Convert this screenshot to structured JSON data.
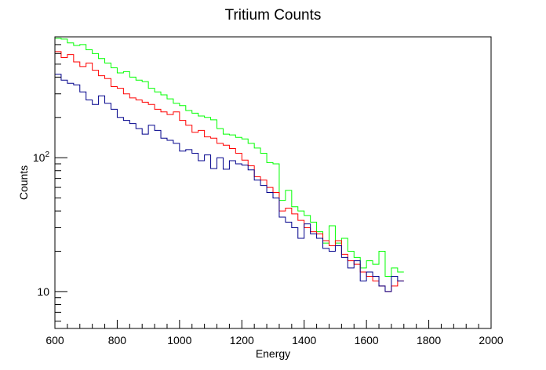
{
  "chart_data": {
    "type": "step-histogram",
    "title": "Tritium Counts",
    "xlabel": "Energy",
    "ylabel": "Counts",
    "xlim": [
      600,
      2000
    ],
    "ylim": [
      5.3,
      800
    ],
    "yscale": "log",
    "grid": false,
    "x_ticks": [
      600,
      800,
      1000,
      1200,
      1400,
      1600,
      1800,
      2000
    ],
    "x_tick_labels": [
      "600",
      "800",
      "1000",
      "1200",
      "1400",
      "1600",
      "1800",
      "2000"
    ],
    "y_tick_labels": [
      {
        "value": 10,
        "base": "10",
        "exp": ""
      },
      {
        "value": 100,
        "base": "10",
        "exp": "2"
      }
    ],
    "bin_width": 20,
    "bin_edges_start": 600,
    "series": [
      {
        "color": "#00ff00",
        "values": [
          780,
          770,
          720,
          690,
          700,
          640,
          600,
          550,
          510,
          470,
          430,
          440,
          400,
          380,
          370,
          330,
          310,
          295,
          275,
          255,
          245,
          225,
          215,
          205,
          200,
          192,
          165,
          150,
          148,
          142,
          138,
          128,
          118,
          108,
          92,
          90,
          48,
          57,
          43,
          40,
          37,
          33,
          28,
          23,
          31,
          23,
          25,
          20,
          18,
          15,
          17,
          16,
          20,
          13,
          15,
          14
        ]
      },
      {
        "color": "#ff0000",
        "values": [
          620,
          560,
          590,
          520,
          480,
          510,
          450,
          410,
          390,
          340,
          330,
          300,
          280,
          270,
          260,
          250,
          230,
          220,
          210,
          220,
          190,
          175,
          155,
          160,
          143,
          140,
          128,
          124,
          117,
          108,
          96,
          87,
          72,
          68,
          60,
          55,
          40,
          42,
          38,
          34,
          30,
          28,
          27,
          24,
          22,
          24,
          19,
          17,
          16,
          14,
          13,
          12,
          11,
          10,
          11,
          12
        ]
      },
      {
        "color": "#00008b",
        "values": [
          420,
          380,
          360,
          350,
          310,
          270,
          250,
          290,
          255,
          230,
          200,
          190,
          180,
          165,
          150,
          175,
          160,
          140,
          135,
          128,
          112,
          115,
          108,
          95,
          105,
          83,
          100,
          82,
          95,
          90,
          88,
          81,
          68,
          62,
          55,
          50,
          36,
          33,
          30,
          25,
          32,
          27,
          25,
          21,
          20,
          22,
          18,
          15,
          17,
          12,
          14,
          13,
          11,
          10,
          13,
          12
        ]
      }
    ]
  }
}
